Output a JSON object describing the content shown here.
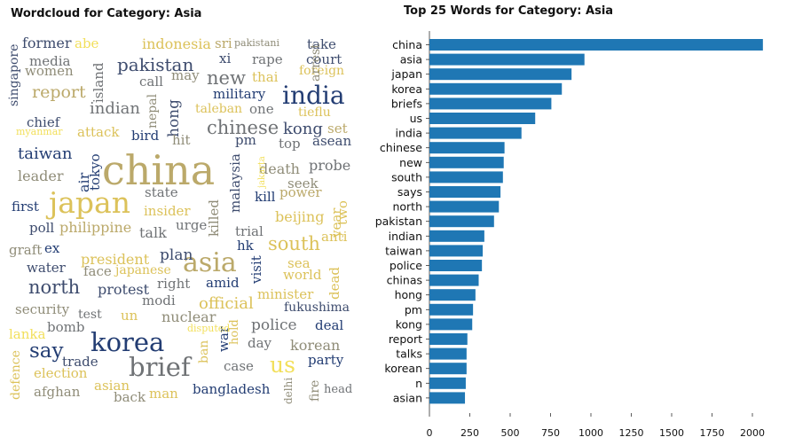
{
  "chart_data": [
    {
      "type": "wordcloud",
      "title": "Wordcloud for Category: Asia",
      "palette": [
        "#233d73",
        "#3e4c6e",
        "#6f7275",
        "#8f8c78",
        "#bba96a",
        "#dcc25a",
        "#f2df5a"
      ],
      "words": [
        {
          "text": "china",
          "size": 46,
          "color": "#bba96a"
        },
        {
          "text": "japan",
          "size": 33,
          "color": "#dcc25a"
        },
        {
          "text": "korea",
          "size": 29,
          "color": "#233d73"
        },
        {
          "text": "asia",
          "size": 30,
          "color": "#bba96a"
        },
        {
          "text": "brief",
          "size": 29,
          "color": "#6f7275"
        },
        {
          "text": "india",
          "size": 28,
          "color": "#233d73"
        },
        {
          "text": "us",
          "size": 25,
          "color": "#f2df5a"
        },
        {
          "text": "say",
          "size": 23,
          "color": "#233d73"
        },
        {
          "text": "north",
          "size": 21,
          "color": "#3e4c6e"
        },
        {
          "text": "south",
          "size": 21,
          "color": "#dcc25a"
        },
        {
          "text": "chinese",
          "size": 21,
          "color": "#6f7275"
        },
        {
          "text": "new",
          "size": 21,
          "color": "#6f7275"
        },
        {
          "text": "pakistan",
          "size": 20,
          "color": "#3e4c6e"
        },
        {
          "text": "report",
          "size": 19,
          "color": "#bba96a"
        },
        {
          "text": "official",
          "size": 18,
          "color": "#dcc25a"
        },
        {
          "text": "taiwan",
          "size": 18,
          "color": "#233d73"
        },
        {
          "text": "indian",
          "size": 18,
          "color": "#6f7275"
        },
        {
          "text": "kong",
          "size": 18,
          "color": "#3e4c6e"
        },
        {
          "text": "hong",
          "size": 17,
          "color": "#3e4c6e"
        },
        {
          "text": "police",
          "size": 17,
          "color": "#6f7275"
        },
        {
          "text": "plan",
          "size": 17,
          "color": "#3e4c6e"
        },
        {
          "text": "military",
          "size": 15,
          "color": "#233d73"
        },
        {
          "text": "indonesia",
          "size": 16,
          "color": "#dcc25a"
        },
        {
          "text": "former",
          "size": 16,
          "color": "#3e4c6e"
        },
        {
          "text": "president",
          "size": 16,
          "color": "#dcc25a"
        },
        {
          "text": "philippine",
          "size": 16,
          "color": "#bba96a"
        },
        {
          "text": "leader",
          "size": 16,
          "color": "#8f8c78"
        },
        {
          "text": "beijing",
          "size": 16,
          "color": "#dcc25a"
        },
        {
          "text": "death",
          "size": 16,
          "color": "#8f8c78"
        },
        {
          "text": "probe",
          "size": 16,
          "color": "#6f7275"
        },
        {
          "text": "minister",
          "size": 15,
          "color": "#dcc25a"
        },
        {
          "text": "nuclear",
          "size": 16,
          "color": "#8f8c78"
        },
        {
          "text": "protest",
          "size": 16,
          "color": "#3e4c6e"
        },
        {
          "text": "korean",
          "size": 16,
          "color": "#8f8c78"
        },
        {
          "text": "bangladesh",
          "size": 15,
          "color": "#233d73"
        },
        {
          "text": "trade",
          "size": 15,
          "color": "#3e4c6e"
        },
        {
          "text": "election",
          "size": 15,
          "color": "#dcc25a"
        },
        {
          "text": "afghan",
          "size": 15,
          "color": "#8f8c78"
        },
        {
          "text": "asian",
          "size": 15,
          "color": "#dcc25a"
        },
        {
          "text": "man",
          "size": 15,
          "color": "#dcc25a"
        },
        {
          "text": "back",
          "size": 15,
          "color": "#8f8c78"
        },
        {
          "text": "case",
          "size": 15,
          "color": "#6f7275"
        },
        {
          "text": "party",
          "size": 15,
          "color": "#233d73"
        },
        {
          "text": "deal",
          "size": 15,
          "color": "#233d73"
        },
        {
          "text": "day",
          "size": 15,
          "color": "#6f7275"
        },
        {
          "text": "security",
          "size": 15,
          "color": "#8f8c78"
        },
        {
          "text": "bomb",
          "size": 15,
          "color": "#6f7275"
        },
        {
          "text": "lanka",
          "size": 15,
          "color": "#f2df5a"
        },
        {
          "text": "test",
          "size": 14,
          "color": "#6f7275"
        },
        {
          "text": "un",
          "size": 15,
          "color": "#dcc25a"
        },
        {
          "text": "modi",
          "size": 15,
          "color": "#6f7275"
        },
        {
          "text": "amid",
          "size": 15,
          "color": "#233d73"
        },
        {
          "text": "right",
          "size": 15,
          "color": "#6f7275"
        },
        {
          "text": "face",
          "size": 15,
          "color": "#8f8c78"
        },
        {
          "text": "japanese",
          "size": 14,
          "color": "#dcc25a"
        },
        {
          "text": "water",
          "size": 15,
          "color": "#3e4c6e"
        },
        {
          "text": "graft",
          "size": 15,
          "color": "#8f8c78"
        },
        {
          "text": "ex",
          "size": 15,
          "color": "#233d73"
        },
        {
          "text": "poll",
          "size": 15,
          "color": "#3e4c6e"
        },
        {
          "text": "first",
          "size": 15,
          "color": "#233d73"
        },
        {
          "text": "talk",
          "size": 16,
          "color": "#6f7275"
        },
        {
          "text": "urge",
          "size": 15,
          "color": "#6f7275"
        },
        {
          "text": "insider",
          "size": 15,
          "color": "#dcc25a"
        },
        {
          "text": "state",
          "size": 15,
          "color": "#6f7275"
        },
        {
          "text": "trial",
          "size": 15,
          "color": "#6f7275"
        },
        {
          "text": "hk",
          "size": 15,
          "color": "#233d73"
        },
        {
          "text": "visit",
          "size": 15,
          "color": "#233d73"
        },
        {
          "text": "sea",
          "size": 15,
          "color": "#dcc25a"
        },
        {
          "text": "world",
          "size": 15,
          "color": "#dcc25a"
        },
        {
          "text": "anti",
          "size": 15,
          "color": "#dcc25a"
        },
        {
          "text": "dead",
          "size": 15,
          "color": "#dcc25a"
        },
        {
          "text": "fukushima",
          "size": 14,
          "color": "#3e4c6e"
        },
        {
          "text": "kill",
          "size": 15,
          "color": "#233d73"
        },
        {
          "text": "power",
          "size": 15,
          "color": "#bba96a"
        },
        {
          "text": "seek",
          "size": 15,
          "color": "#8f8c78"
        },
        {
          "text": "top",
          "size": 15,
          "color": "#6f7275"
        },
        {
          "text": "asean",
          "size": 15,
          "color": "#3e4c6e"
        },
        {
          "text": "set",
          "size": 15,
          "color": "#bba96a"
        },
        {
          "text": "pm",
          "size": 15,
          "color": "#3e4c6e"
        },
        {
          "text": "hit",
          "size": 15,
          "color": "#8f8c78"
        },
        {
          "text": "bird",
          "size": 15,
          "color": "#233d73"
        },
        {
          "text": "attack",
          "size": 15,
          "color": "#dcc25a"
        },
        {
          "text": "chief",
          "size": 15,
          "color": "#3e4c6e"
        },
        {
          "text": "myanmar",
          "size": 11,
          "color": "#f2df5a"
        },
        {
          "text": "one",
          "size": 15,
          "color": "#6f7275"
        },
        {
          "text": "taleban",
          "size": 14,
          "color": "#dcc25a"
        },
        {
          "text": "tieflu",
          "size": 14,
          "color": "#dcc25a"
        },
        {
          "text": "call",
          "size": 15,
          "color": "#6f7275"
        },
        {
          "text": "may",
          "size": 15,
          "color": "#8f8c78"
        },
        {
          "text": "thai",
          "size": 15,
          "color": "#dcc25a"
        },
        {
          "text": "rape",
          "size": 15,
          "color": "#6f7275"
        },
        {
          "text": "xi",
          "size": 15,
          "color": "#3e4c6e"
        },
        {
          "text": "sri",
          "size": 15,
          "color": "#bba96a"
        },
        {
          "text": "pakistani",
          "size": 11,
          "color": "#8f8c78"
        },
        {
          "text": "take",
          "size": 15,
          "color": "#3e4c6e"
        },
        {
          "text": "court",
          "size": 15,
          "color": "#3e4c6e"
        },
        {
          "text": "foreign",
          "size": 14,
          "color": "#dcc25a"
        },
        {
          "text": "media",
          "size": 15,
          "color": "#6f7275"
        },
        {
          "text": "women",
          "size": 15,
          "color": "#8f8c78"
        },
        {
          "text": "abe",
          "size": 15,
          "color": "#f2df5a"
        },
        {
          "text": "singapore",
          "size": 14,
          "color": "#3e4c6e"
        },
        {
          "text": "island",
          "size": 15,
          "color": "#6f7275"
        },
        {
          "text": "nepal",
          "size": 14,
          "color": "#8f8c78"
        },
        {
          "text": "arrest",
          "size": 14,
          "color": "#8f8c78"
        },
        {
          "text": "air",
          "size": 16,
          "color": "#233d73"
        },
        {
          "text": "tokyo",
          "size": 15,
          "color": "#233d73"
        },
        {
          "text": "malaysia",
          "size": 15,
          "color": "#3e4c6e"
        },
        {
          "text": "jakarta",
          "size": 10,
          "color": "#f2df5a"
        },
        {
          "text": "killed",
          "size": 15,
          "color": "#8f8c78"
        },
        {
          "text": "year",
          "size": 15,
          "color": "#dcc25a"
        },
        {
          "text": "two",
          "size": 15,
          "color": "#dcc25a"
        },
        {
          "text": "war",
          "size": 15,
          "color": "#233d73"
        },
        {
          "text": "hold",
          "size": 13,
          "color": "#dcc25a"
        },
        {
          "text": "ban",
          "size": 14,
          "color": "#dcc25a"
        },
        {
          "text": "disputed",
          "size": 11,
          "color": "#f2df5a"
        },
        {
          "text": "defence",
          "size": 14,
          "color": "#dcc25a"
        },
        {
          "text": "delhi",
          "size": 12,
          "color": "#8f8c78"
        },
        {
          "text": "fire",
          "size": 14,
          "color": "#8f8c78"
        },
        {
          "text": "head",
          "size": 13,
          "color": "#6f7275"
        }
      ]
    },
    {
      "type": "bar",
      "orientation": "horizontal",
      "title": "Top 25 Words for Category: Asia",
      "color": "#1f77b4",
      "categories": [
        "china",
        "asia",
        "japan",
        "korea",
        "briefs",
        "us",
        "india",
        "chinese",
        "new",
        "south",
        "says",
        "north",
        "pakistan",
        "indian",
        "taiwan",
        "police",
        "chinas",
        "hong",
        "pm",
        "kong",
        "report",
        "talks",
        "korean",
        "n",
        "asian"
      ],
      "values": [
        2065,
        960,
        880,
        820,
        755,
        655,
        570,
        465,
        460,
        455,
        440,
        430,
        400,
        340,
        330,
        325,
        305,
        285,
        270,
        265,
        235,
        230,
        230,
        225,
        220
      ],
      "xlim": [
        0,
        2100
      ],
      "xticks": [
        "0",
        "250",
        "500",
        "750",
        "1000",
        "1250",
        "1500",
        "1750",
        "2000"
      ],
      "grid": false
    }
  ]
}
